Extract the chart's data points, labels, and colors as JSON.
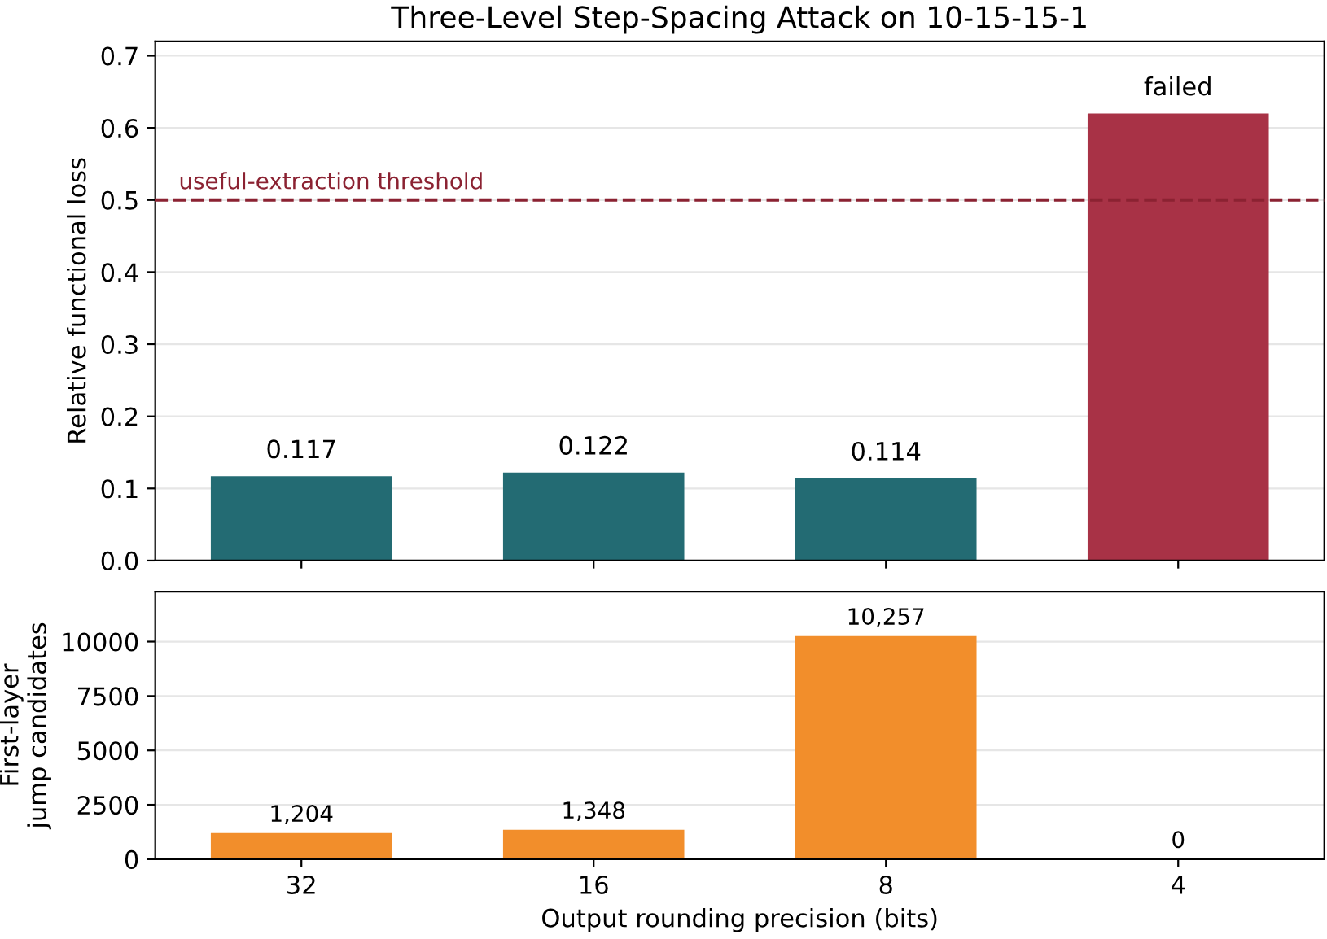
{
  "chart_data": [
    {
      "type": "bar",
      "title": "Three-Level Step-Spacing Attack on 10-15-15-1",
      "ylabel": "Relative functional loss",
      "categories": [
        "32",
        "16",
        "8",
        "4"
      ],
      "values": [
        0.117,
        0.122,
        0.114,
        0.62
      ],
      "colors": [
        "#236b73",
        "#236b73",
        "#236b73",
        "#a83246"
      ],
      "value_labels": [
        "0.117",
        "0.122",
        "0.114",
        "failed"
      ],
      "ylim": [
        0,
        0.72
      ],
      "yticks": [
        {
          "value": 0,
          "label": "0.0"
        },
        0.1,
        0.2,
        0.3,
        0.4,
        0.5,
        0.6,
        0.7
      ],
      "grid": "y",
      "tick_labels": "y",
      "ref_lines": [
        {
          "axis": "y",
          "value": 0.5,
          "label": "useful-extraction threshold",
          "color": "#8b2232",
          "line_style": "dashed"
        }
      ]
    },
    {
      "type": "bar",
      "xlabel": "Output rounding precision (bits)",
      "ylabel": "First-layer\njump candidates",
      "categories": [
        "32",
        "16",
        "8",
        "4"
      ],
      "values": [
        1204,
        1348,
        10257,
        0
      ],
      "color": "#f28e2b",
      "value_labels": [
        "1,204",
        "1,348",
        "10,257",
        "0"
      ],
      "ylim": [
        0,
        12300
      ],
      "yticks": [
        0,
        2500,
        5000,
        7500,
        10000
      ],
      "grid": "y"
    }
  ]
}
